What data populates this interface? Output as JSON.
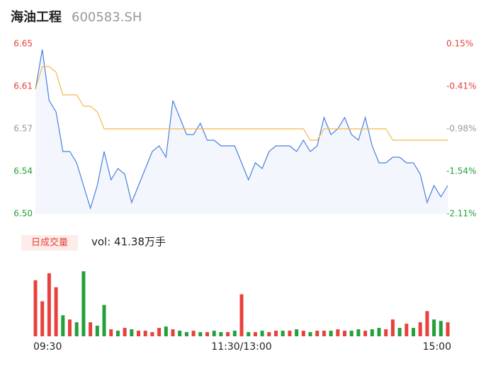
{
  "header": {
    "name": "海油工程",
    "code": "600583.SH"
  },
  "chart_data": {
    "type": "line",
    "categories": [
      "09:30",
      null,
      null,
      null,
      null,
      null,
      null,
      null,
      null,
      null,
      null,
      null,
      null,
      null,
      null,
      null,
      null,
      null,
      null,
      null,
      null,
      null,
      null,
      null,
      null,
      null,
      null,
      null,
      null,
      null,
      "11:30/13:00",
      null,
      null,
      null,
      null,
      null,
      null,
      null,
      null,
      null,
      null,
      null,
      null,
      null,
      null,
      null,
      null,
      null,
      null,
      null,
      null,
      null,
      null,
      null,
      null,
      null,
      null,
      null,
      null,
      null,
      "15:00"
    ],
    "series": [
      {
        "name": "price",
        "color": "#4a7fe0",
        "values": [
          6.61,
          6.645,
          6.6,
          6.59,
          6.555,
          6.555,
          6.545,
          6.525,
          6.505,
          6.525,
          6.555,
          6.53,
          6.54,
          6.535,
          6.51,
          6.525,
          6.54,
          6.555,
          6.56,
          6.55,
          6.6,
          6.585,
          6.57,
          6.57,
          6.58,
          6.565,
          6.565,
          6.56,
          6.56,
          6.56,
          6.545,
          6.53,
          6.545,
          6.54,
          6.555,
          6.56,
          6.56,
          6.56,
          6.555,
          6.565,
          6.555,
          6.56,
          6.585,
          6.57,
          6.575,
          6.585,
          6.57,
          6.565,
          6.585,
          6.56,
          6.545,
          6.545,
          6.55,
          6.55,
          6.545,
          6.545,
          6.535,
          6.51,
          6.525,
          6.515,
          6.525
        ]
      },
      {
        "name": "average",
        "color": "#f5b84a",
        "values": [
          6.61,
          6.63,
          6.63,
          6.625,
          6.605,
          6.605,
          6.605,
          6.595,
          6.595,
          6.59,
          6.575,
          6.575,
          6.575,
          6.575,
          6.575,
          6.575,
          6.575,
          6.575,
          6.575,
          6.575,
          6.575,
          6.575,
          6.575,
          6.575,
          6.575,
          6.575,
          6.575,
          6.575,
          6.575,
          6.575,
          6.575,
          6.575,
          6.575,
          6.575,
          6.575,
          6.575,
          6.575,
          6.575,
          6.575,
          6.575,
          6.565,
          6.565,
          6.575,
          6.575,
          6.575,
          6.575,
          6.575,
          6.575,
          6.575,
          6.575,
          6.575,
          6.575,
          6.565,
          6.565,
          6.565,
          6.565,
          6.565,
          6.565,
          6.565,
          6.565,
          6.565
        ]
      }
    ],
    "ylim": [
      6.5,
      6.65
    ],
    "yticks": [
      {
        "value": 6.65,
        "label": "6.65"
      },
      {
        "value": 6.6125,
        "label": "6.61"
      },
      {
        "value": 6.575,
        "label": "6.57"
      },
      {
        "value": 6.5375,
        "label": "6.54"
      },
      {
        "value": 6.5,
        "label": "6.50"
      }
    ],
    "ytick_colors": [
      "#e8413b",
      "#e8413b",
      "#999999",
      "#22a03b",
      "#22a03b"
    ],
    "y2lim": [
      -2.11,
      0.15
    ],
    "y2ticks": [
      {
        "value": 0.15,
        "label": "0.15%"
      },
      {
        "value": -0.415,
        "label": "-0.41%"
      },
      {
        "value": -0.98,
        "label": "-0.98%"
      },
      {
        "value": -1.545,
        "label": "-1.54%"
      },
      {
        "value": -2.11,
        "label": "-2.11%"
      }
    ],
    "volume": {
      "label": "日成交量",
      "summary": "vol: 41.38万手",
      "ylim": [
        0,
        2.4
      ],
      "values": [
        2.0,
        1.25,
        2.25,
        1.75,
        0.75,
        0.6,
        0.5,
        2.32,
        0.5,
        0.38,
        1.12,
        0.25,
        0.2,
        0.3,
        0.25,
        0.2,
        0.2,
        0.15,
        0.3,
        0.35,
        0.25,
        0.2,
        0.15,
        0.2,
        0.15,
        0.15,
        0.2,
        0.15,
        0.15,
        0.2,
        1.5,
        0.15,
        0.15,
        0.2,
        0.15,
        0.2,
        0.2,
        0.2,
        0.25,
        0.2,
        0.15,
        0.2,
        0.2,
        0.2,
        0.25,
        0.2,
        0.2,
        0.25,
        0.2,
        0.25,
        0.3,
        0.25,
        0.6,
        0.3,
        0.45,
        0.3,
        0.5,
        0.9,
        0.6,
        0.55,
        0.5
      ],
      "colors": [
        "#e8413b",
        "#e8413b",
        "#e8413b",
        "#e8413b",
        "#22a03b",
        "#e8413b",
        "#22a03b",
        "#22a03b",
        "#e8413b",
        "#22a03b",
        "#22a03b",
        "#e8413b",
        "#22a03b",
        "#e8413b",
        "#22a03b",
        "#e8413b",
        "#e8413b",
        "#e8413b",
        "#e8413b",
        "#22a03b",
        "#e8413b",
        "#22a03b",
        "#22a03b",
        "#e8413b",
        "#22a03b",
        "#e8413b",
        "#22a03b",
        "#22a03b",
        "#e8413b",
        "#22a03b",
        "#e8413b",
        "#22a03b",
        "#e8413b",
        "#22a03b",
        "#e8413b",
        "#e8413b",
        "#22a03b",
        "#e8413b",
        "#22a03b",
        "#e8413b",
        "#22a03b",
        "#e8413b",
        "#e8413b",
        "#22a03b",
        "#e8413b",
        "#e8413b",
        "#22a03b",
        "#22a03b",
        "#e8413b",
        "#22a03b",
        "#22a03b",
        "#e8413b",
        "#e8413b",
        "#22a03b",
        "#e8413b",
        "#22a03b",
        "#e8413b",
        "#e8413b",
        "#22a03b",
        "#22a03b",
        "#e8413b"
      ]
    }
  }
}
